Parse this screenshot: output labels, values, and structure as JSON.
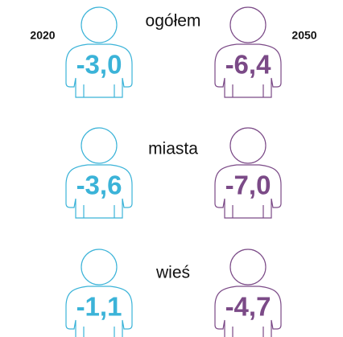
{
  "years": [
    "2020",
    "2050"
  ],
  "rows": [
    {
      "label": "ogółem",
      "values": [
        "-3,0",
        "-6,4"
      ]
    },
    {
      "label": "miasta",
      "values": [
        "-3,6",
        "-7,0"
      ]
    },
    {
      "label": "wieś",
      "values": [
        "-1,1",
        "-4,7"
      ]
    }
  ]
}
